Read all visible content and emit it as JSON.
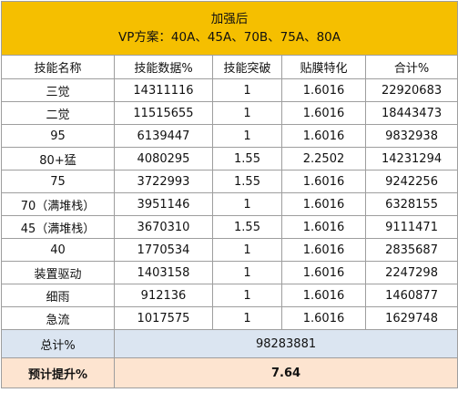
{
  "title": {
    "line1": "加强后",
    "line2": "VP方案：40A、45A、70B、75A、80A"
  },
  "columns": [
    "技能名称",
    "技能数据%",
    "技能突破",
    "贴膜特化",
    "合计%"
  ],
  "rows": [
    [
      "三觉",
      "14311116",
      "1",
      "1.6016",
      "22920683"
    ],
    [
      "二觉",
      "11515655",
      "1",
      "1.6016",
      "18443473"
    ],
    [
      "95",
      "6139447",
      "1",
      "1.6016",
      "9832938"
    ],
    [
      "80+猛",
      "4080295",
      "1.55",
      "2.2502",
      "14231294"
    ],
    [
      "75",
      "3722993",
      "1.55",
      "1.6016",
      "9242256"
    ],
    [
      "70（满堆栈）",
      "3951146",
      "1",
      "1.6016",
      "6328155"
    ],
    [
      "45（满堆栈）",
      "3670310",
      "1.55",
      "1.6016",
      "9111471"
    ],
    [
      "40",
      "1770534",
      "1",
      "1.6016",
      "2835687"
    ],
    [
      "装置驱动",
      "1403158",
      "1",
      "1.6016",
      "2247298"
    ],
    [
      "细雨",
      "912136",
      "1",
      "1.6016",
      "1460877"
    ],
    [
      "急流",
      "1017575",
      "1",
      "1.6016",
      "1629748"
    ]
  ],
  "total": {
    "label": "总计%",
    "value": "98283881"
  },
  "predicted": {
    "label": "预计提升%",
    "value": "7.64"
  },
  "colors": {
    "title_bg": "#f5bf00",
    "total_bg": "#dbe5f1",
    "predicted_bg": "#fde4d0",
    "grid_line": "#9e9e9e"
  }
}
